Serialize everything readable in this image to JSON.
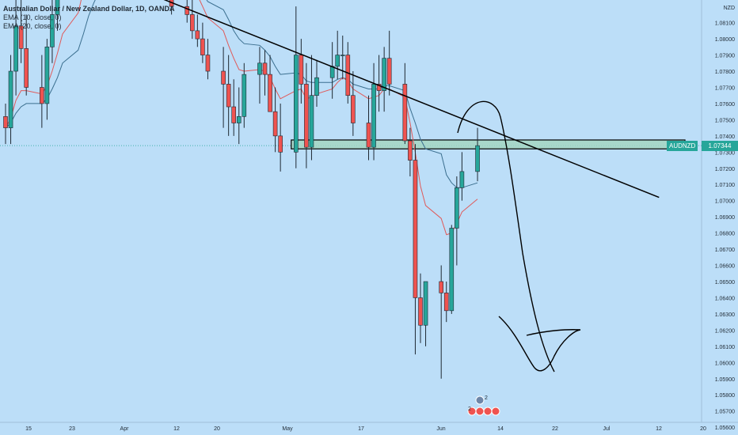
{
  "legend": {
    "symbol": "Australian Dollar / New Zealand Dollar, 1D, OANDA",
    "ema10": "EMA (10, close, 0)",
    "ema20": "EMA (20, close, 0)"
  },
  "colors": {
    "background": "#bcdef8",
    "bull": "#26a69a",
    "bear": "#ef5350",
    "ema10": "#e05a5a",
    "ema20": "#3b6f8f",
    "trendline": "#000000",
    "zone_fill": "#a4d6c2"
  },
  "axis": {
    "currency": "NZD",
    "current_price": "1.07344",
    "symbol_label": "AUDNZD",
    "y_ticks": [
      "1.08100",
      "1.08000",
      "1.07900",
      "1.07800",
      "1.07700",
      "1.07600",
      "1.07500",
      "1.07400",
      "1.07300",
      "1.07200",
      "1.07100",
      "1.07000",
      "1.06900",
      "1.06800",
      "1.06700",
      "1.06600",
      "1.06500",
      "1.06400",
      "1.06300",
      "1.06200",
      "1.06100",
      "1.06000",
      "1.05900",
      "1.05800",
      "1.05700",
      "1.05600"
    ],
    "x_ticks": [
      "15",
      "23",
      "Apr",
      "12",
      "20",
      "May",
      "17",
      "Jun",
      "14",
      "22",
      "Jul",
      "12",
      "20"
    ]
  },
  "events": {
    "badges": [
      "2",
      "2"
    ]
  },
  "chart_data": {
    "type": "candlestick",
    "title": "Australian Dollar / New Zealand Dollar, 1D, OANDA",
    "ylim": [
      1.0563,
      1.0824
    ],
    "y_axis_side": "right",
    "x_start": "2021-03-08",
    "x_end": "2021-07-20",
    "dates": [
      "2021-03-08",
      "2021-03-09",
      "2021-03-10",
      "2021-03-11",
      "2021-03-12",
      "2021-03-15",
      "2021-03-16",
      "2021-03-17",
      "2021-03-18",
      "2021-03-19",
      "2021-03-22",
      "2021-03-23",
      "2021-03-24",
      "2021-03-25",
      "2021-03-26",
      "2021-03-29",
      "2021-03-30",
      "2021-03-31",
      "2021-04-01",
      "2021-04-02",
      "2021-04-05",
      "2021-04-06",
      "2021-04-07",
      "2021-04-08",
      "2021-04-09",
      "2021-04-12",
      "2021-04-13",
      "2021-04-14",
      "2021-04-15",
      "2021-04-16",
      "2021-04-19",
      "2021-04-20",
      "2021-04-21",
      "2021-04-22",
      "2021-04-23",
      "2021-04-26",
      "2021-04-27",
      "2021-04-28",
      "2021-04-29",
      "2021-04-30",
      "2021-05-03",
      "2021-05-04",
      "2021-05-05",
      "2021-05-06",
      "2021-05-07",
      "2021-05-10",
      "2021-05-11",
      "2021-05-12",
      "2021-05-13",
      "2021-05-14",
      "2021-05-17",
      "2021-05-18",
      "2021-05-19",
      "2021-05-20",
      "2021-05-21",
      "2021-05-24",
      "2021-05-25",
      "2021-05-26",
      "2021-05-27",
      "2021-05-28",
      "2021-05-31",
      "2021-06-01",
      "2021-06-02",
      "2021-06-03",
      "2021-06-04",
      "2021-06-07"
    ],
    "open": [
      1.0752,
      1.0745,
      1.078,
      1.0808,
      1.0794,
      1.077,
      1.076,
      1.0795,
      1.0815,
      1.084,
      1.086,
      1.0875,
      1.0895,
      1.0905,
      1.09,
      1.089,
      1.088,
      1.087,
      1.086,
      1.0855,
      1.085,
      1.086,
      1.085,
      1.0835,
      1.083,
      1.082,
      1.0815,
      1.0805,
      1.08,
      1.079,
      1.078,
      1.0772,
      1.0758,
      1.0748,
      1.0752,
      1.0778,
      1.0785,
      1.0778,
      1.0755,
      1.074,
      1.073,
      1.079,
      1.0772,
      1.0733,
      1.0765,
      1.0776,
      1.0783,
      1.079,
      1.079,
      1.0765,
      1.0748,
      1.0733,
      1.0772,
      1.0768,
      1.0788,
      1.0772,
      1.0737,
      1.0725,
      1.064,
      1.0623,
      1.065,
      1.0643,
      1.0632,
      1.0683,
      1.0708,
      1.0718
    ],
    "high": [
      1.076,
      1.079,
      1.0825,
      1.083,
      1.0815,
      1.079,
      1.08,
      1.083,
      1.086,
      1.088,
      1.089,
      1.0905,
      1.0915,
      1.092,
      1.091,
      1.09,
      1.089,
      1.088,
      1.087,
      1.087,
      1.0865,
      1.087,
      1.086,
      1.0845,
      1.084,
      1.0835,
      1.0825,
      1.0815,
      1.081,
      1.08,
      1.0795,
      1.079,
      1.0775,
      1.077,
      1.0785,
      1.0795,
      1.0793,
      1.079,
      1.077,
      1.076,
      1.082,
      1.08,
      1.0785,
      1.079,
      1.0787,
      1.0798,
      1.0805,
      1.0802,
      1.0798,
      1.078,
      1.0765,
      1.0785,
      1.079,
      1.0795,
      1.0805,
      1.0785,
      1.0745,
      1.0735,
      1.0655,
      1.065,
      1.066,
      1.065,
      1.0685,
      1.0715,
      1.073,
      1.0745
    ],
    "low": [
      1.0735,
      1.0735,
      1.0765,
      1.0785,
      1.0765,
      1.0745,
      1.075,
      1.0785,
      1.0805,
      1.083,
      1.085,
      1.0865,
      1.088,
      1.089,
      1.088,
      1.0875,
      1.0865,
      1.0855,
      1.085,
      1.084,
      1.084,
      1.0845,
      1.0835,
      1.0825,
      1.0815,
      1.081,
      1.08,
      1.0795,
      1.0785,
      1.0775,
      1.0745,
      1.074,
      1.074,
      1.0735,
      1.0745,
      1.076,
      1.0765,
      1.0755,
      1.073,
      1.0718,
      1.072,
      1.076,
      1.072,
      1.0725,
      1.0758,
      1.0763,
      1.0775,
      1.0775,
      1.076,
      1.074,
      1.0725,
      1.0725,
      1.0755,
      1.0755,
      1.0765,
      1.0735,
      1.0715,
      1.0605,
      1.0612,
      1.061,
      1.059,
      1.0625,
      1.063,
      1.066,
      1.07,
      1.0712
    ],
    "close": [
      1.0745,
      1.078,
      1.0808,
      1.0794,
      1.077,
      1.076,
      1.0795,
      1.0815,
      1.084,
      1.086,
      1.0875,
      1.0895,
      1.0905,
      1.09,
      1.089,
      1.088,
      1.087,
      1.086,
      1.0855,
      1.085,
      1.086,
      1.085,
      1.0835,
      1.083,
      1.082,
      1.0815,
      1.0805,
      1.08,
      1.079,
      1.078,
      1.0772,
      1.0758,
      1.0748,
      1.0752,
      1.0778,
      1.0785,
      1.0778,
      1.0755,
      1.074,
      1.073,
      1.079,
      1.0772,
      1.0733,
      1.0765,
      1.0776,
      1.0783,
      1.079,
      1.079,
      1.0765,
      1.0748,
      1.0733,
      1.0772,
      1.0768,
      1.0788,
      1.0772,
      1.0737,
      1.0725,
      1.064,
      1.0623,
      1.065,
      1.0643,
      1.0632,
      1.0683,
      1.0708,
      1.0718,
      1.0734
    ],
    "ema10": [
      1.0745,
      1.0751,
      1.0762,
      1.0768,
      1.0768,
      1.0766,
      1.0771,
      1.078,
      1.0791,
      1.0803,
      1.0816,
      1.083,
      1.0843,
      1.0853,
      1.086,
      1.0864,
      1.0865,
      1.0864,
      1.0862,
      1.086,
      1.086,
      1.0858,
      1.0854,
      1.085,
      1.0844,
      1.0839,
      1.0833,
      1.0827,
      1.082,
      1.0813,
      1.0805,
      1.0796,
      1.0788,
      1.0781,
      1.078,
      1.0781,
      1.078,
      1.0776,
      1.0769,
      1.0763,
      1.0768,
      1.0769,
      1.0763,
      1.0764,
      1.0766,
      1.0769,
      1.0773,
      1.0776,
      1.0774,
      1.0769,
      1.0763,
      1.0764,
      1.0765,
      1.0769,
      1.0769,
      1.0764,
      1.0748,
      1.073,
      1.0709,
      1.0697,
      1.0689,
      1.0679,
      1.068,
      1.0686,
      1.0693,
      1.0701
    ],
    "ema20": [
      1.0745,
      1.0748,
      1.0754,
      1.0758,
      1.076,
      1.076,
      1.0763,
      1.0769,
      1.0776,
      1.0785,
      1.0793,
      1.0803,
      1.0814,
      1.0822,
      1.0829,
      1.0834,
      1.0838,
      1.084,
      1.0842,
      1.0843,
      1.0845,
      1.0845,
      1.0844,
      1.0843,
      1.0841,
      1.0838,
      1.0835,
      1.0832,
      1.0828,
      1.0823,
      1.0818,
      1.0812,
      1.0805,
      1.08,
      1.0797,
      1.0796,
      1.0793,
      1.0789,
      1.0783,
      1.0778,
      1.0779,
      1.0778,
      1.0774,
      1.0773,
      1.0773,
      1.0773,
      1.0775,
      1.0776,
      1.0775,
      1.0772,
      1.0769,
      1.0769,
      1.0769,
      1.0771,
      1.0771,
      1.0768,
      1.0757,
      1.0748,
      1.0738,
      1.0732,
      1.0729,
      1.0716,
      1.0711,
      1.0708,
      1.0708,
      1.0711
    ],
    "zone": {
      "y_low": 1.0732,
      "y_high": 1.07375,
      "x_from": "2021-05-03",
      "x_to": "2021-07-17"
    },
    "trendline": [
      {
        "x": "2021-04-07",
        "y": 1.0825
      },
      {
        "x": "2021-07-12",
        "y": 1.0702
      }
    ]
  }
}
